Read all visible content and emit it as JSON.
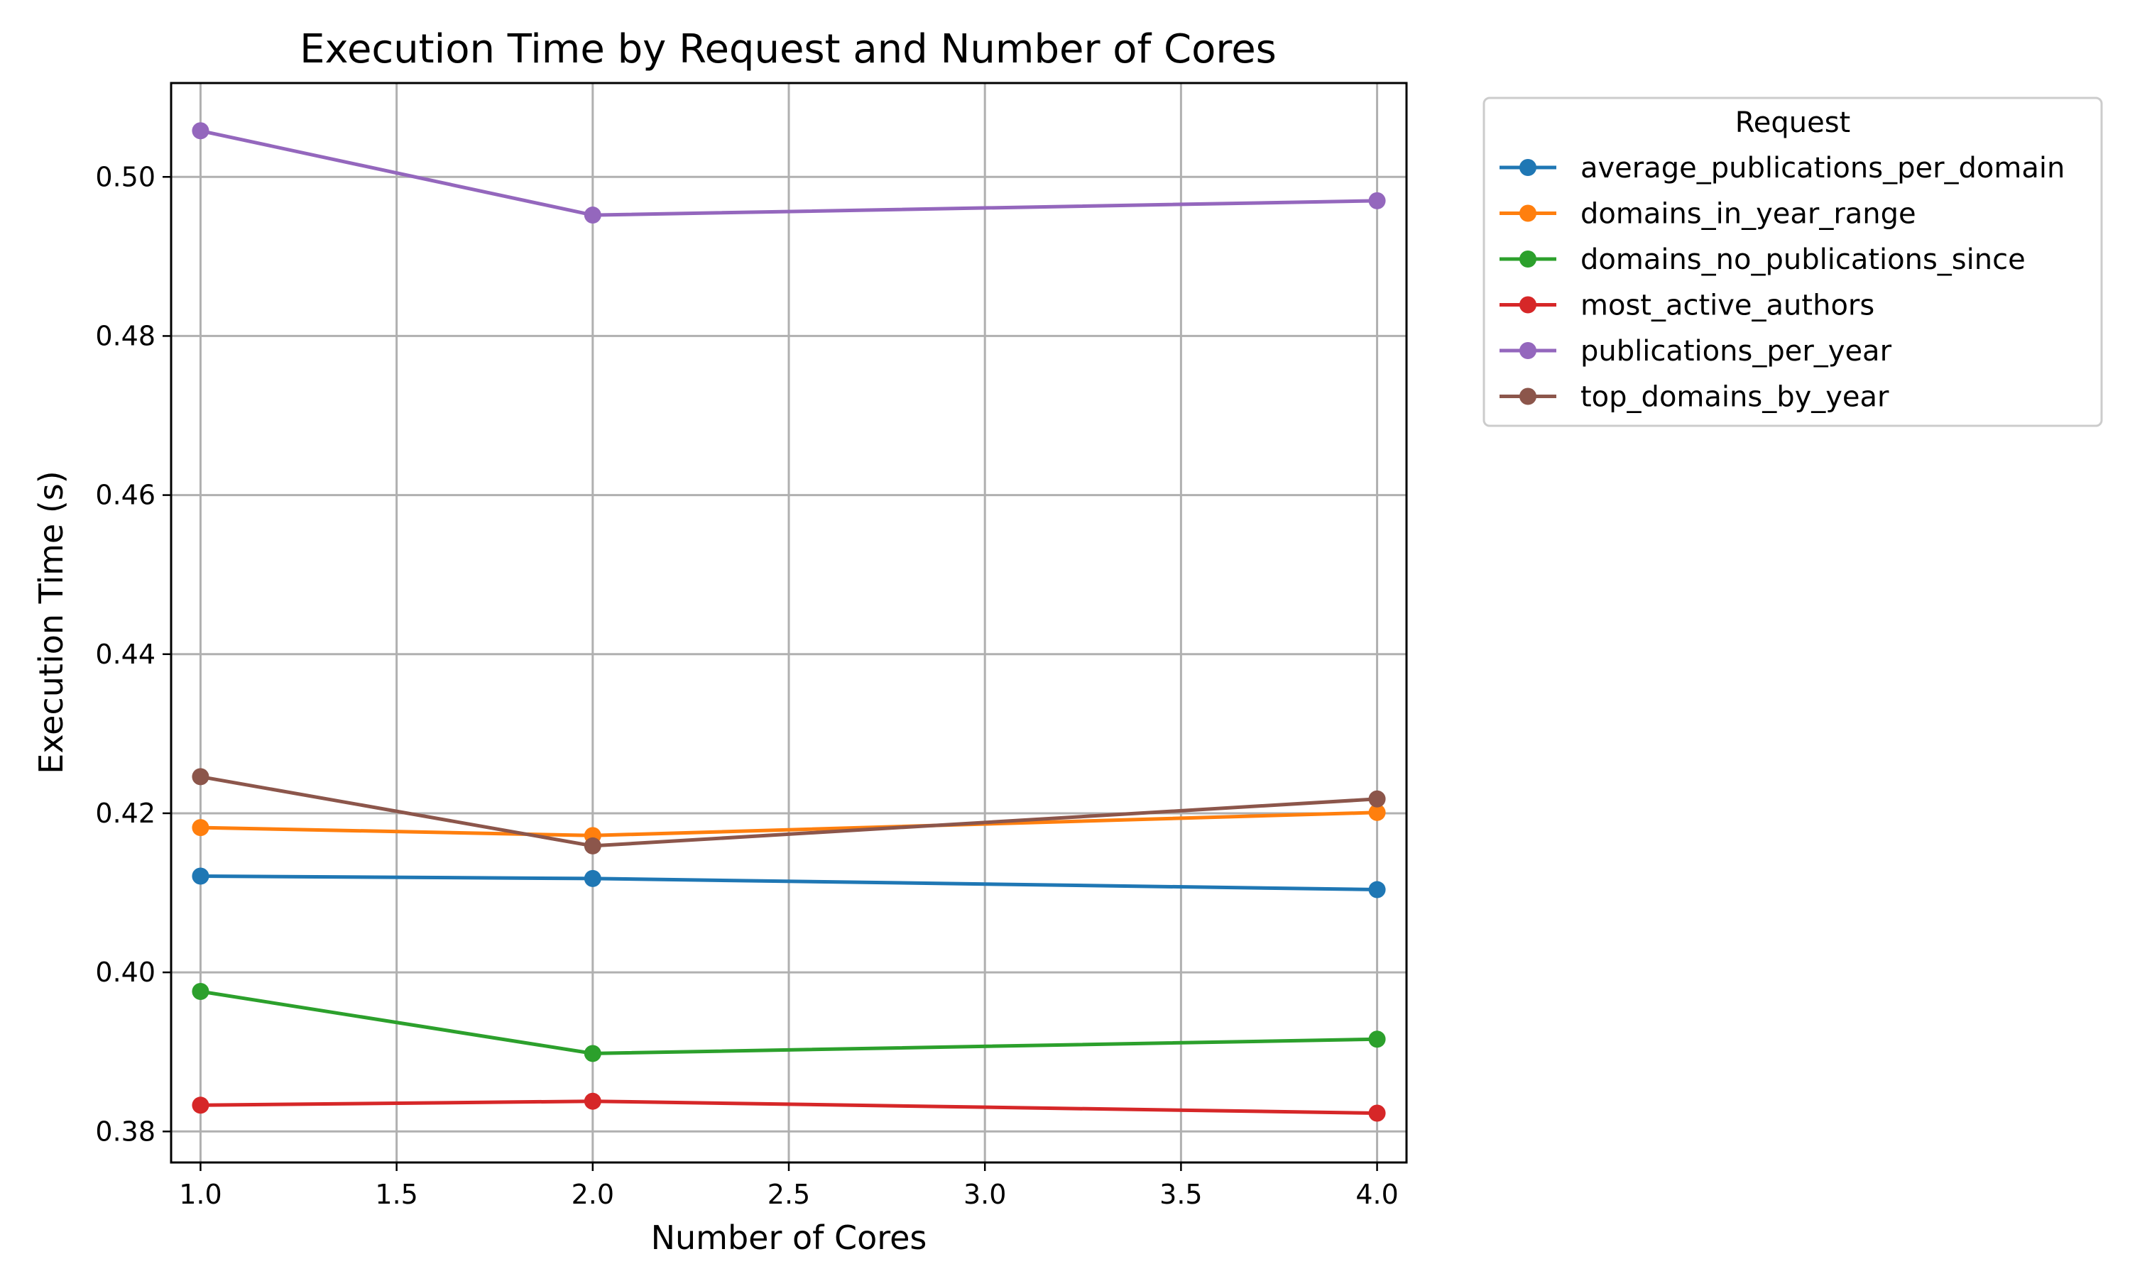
{
  "chart_data": {
    "type": "line",
    "title": "Execution Time by Request and Number of Cores",
    "xlabel": "Number of Cores",
    "ylabel": "Execution Time (s)",
    "x": [
      1,
      2,
      4
    ],
    "xlim": [
      0.925,
      4.075
    ],
    "ylim": [
      0.3761,
      0.5118
    ],
    "xticks": [
      1.0,
      1.5,
      2.0,
      2.5,
      3.0,
      3.5,
      4.0
    ],
    "xtick_labels": [
      "1.0",
      "1.5",
      "2.0",
      "2.5",
      "3.0",
      "3.5",
      "4.0"
    ],
    "yticks": [
      0.38,
      0.4,
      0.42,
      0.44,
      0.46,
      0.48,
      0.5
    ],
    "ytick_labels": [
      "0.38",
      "0.40",
      "0.42",
      "0.44",
      "0.46",
      "0.48",
      "0.50"
    ],
    "grid": true,
    "legend": {
      "title": "Request",
      "placement": "outside-upper-right"
    },
    "series": [
      {
        "name": "average_publications_per_domain",
        "color": "#1f77b4",
        "values": [
          0.4121,
          0.4118,
          0.4104
        ]
      },
      {
        "name": "domains_in_year_range",
        "color": "#ff7f0e",
        "values": [
          0.4182,
          0.4172,
          0.4201
        ]
      },
      {
        "name": "domains_no_publications_since",
        "color": "#2ca02c",
        "values": [
          0.3976,
          0.3898,
          0.3916
        ]
      },
      {
        "name": "most_active_authors",
        "color": "#d62728",
        "values": [
          0.3833,
          0.3838,
          0.3823
        ]
      },
      {
        "name": "publications_per_year",
        "color": "#9467bd",
        "values": [
          0.5058,
          0.4952,
          0.497
        ]
      },
      {
        "name": "top_domains_by_year",
        "color": "#8c564b",
        "values": [
          0.4246,
          0.4159,
          0.4218
        ]
      }
    ]
  }
}
